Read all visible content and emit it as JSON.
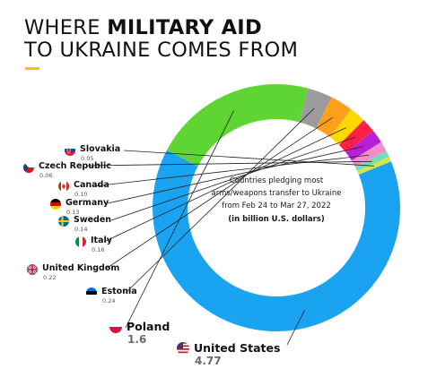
{
  "title": {
    "line1_prefix": "WHERE ",
    "line1_bold": "MILITARY AID",
    "line2": "TO UKRAINE COMES FROM"
  },
  "colors": {
    "accent": "#f5c400",
    "united_states": "#1aa3f0",
    "poland": "#5fd534",
    "estonia": "#9b9b9b",
    "united_kingdom": "#ff9f1c",
    "italy": "#ffd800",
    "sweden": "#ff1f4b",
    "germany": "#b620d6",
    "canada": "#ef8ec9",
    "czech_republic": "#6ee0b6",
    "slovakia": "#d7e44a"
  },
  "chart_data": {
    "type": "pie",
    "variant": "donut",
    "caption": "Countries pledging most arms/weapons transfer to Ukraine from Feb 24 to Mar 27, 2022",
    "unit": "(in billion U.S. dollars)",
    "slices": [
      {
        "label": "United States",
        "value": 4.77,
        "display": "4.77",
        "flag": "us-flag-icon"
      },
      {
        "label": "Poland",
        "value": 1.6,
        "display": "1.6",
        "flag": "poland-flag-icon"
      },
      {
        "label": "Estonia",
        "value": 0.24,
        "display": "0.24",
        "flag": "estonia-flag-icon"
      },
      {
        "label": "United Kingdom",
        "value": 0.22,
        "display": "0.22",
        "flag": "uk-flag-icon"
      },
      {
        "label": "Italy",
        "value": 0.16,
        "display": "0.16",
        "flag": "italy-flag-icon"
      },
      {
        "label": "Sweden",
        "value": 0.14,
        "display": "0.14",
        "flag": "sweden-flag-icon"
      },
      {
        "label": "Germany",
        "value": 0.13,
        "display": "0.13",
        "flag": "germany-flag-icon"
      },
      {
        "label": "Canada",
        "value": 0.1,
        "display": "0.10",
        "flag": "canada-flag-icon"
      },
      {
        "label": "Czech Republic",
        "value": 0.06,
        "display": "0.06",
        "flag": "czech-flag-icon"
      },
      {
        "label": "Slovakia",
        "value": 0.05,
        "display": "0.05",
        "flag": "slovakia-flag-icon"
      }
    ]
  }
}
